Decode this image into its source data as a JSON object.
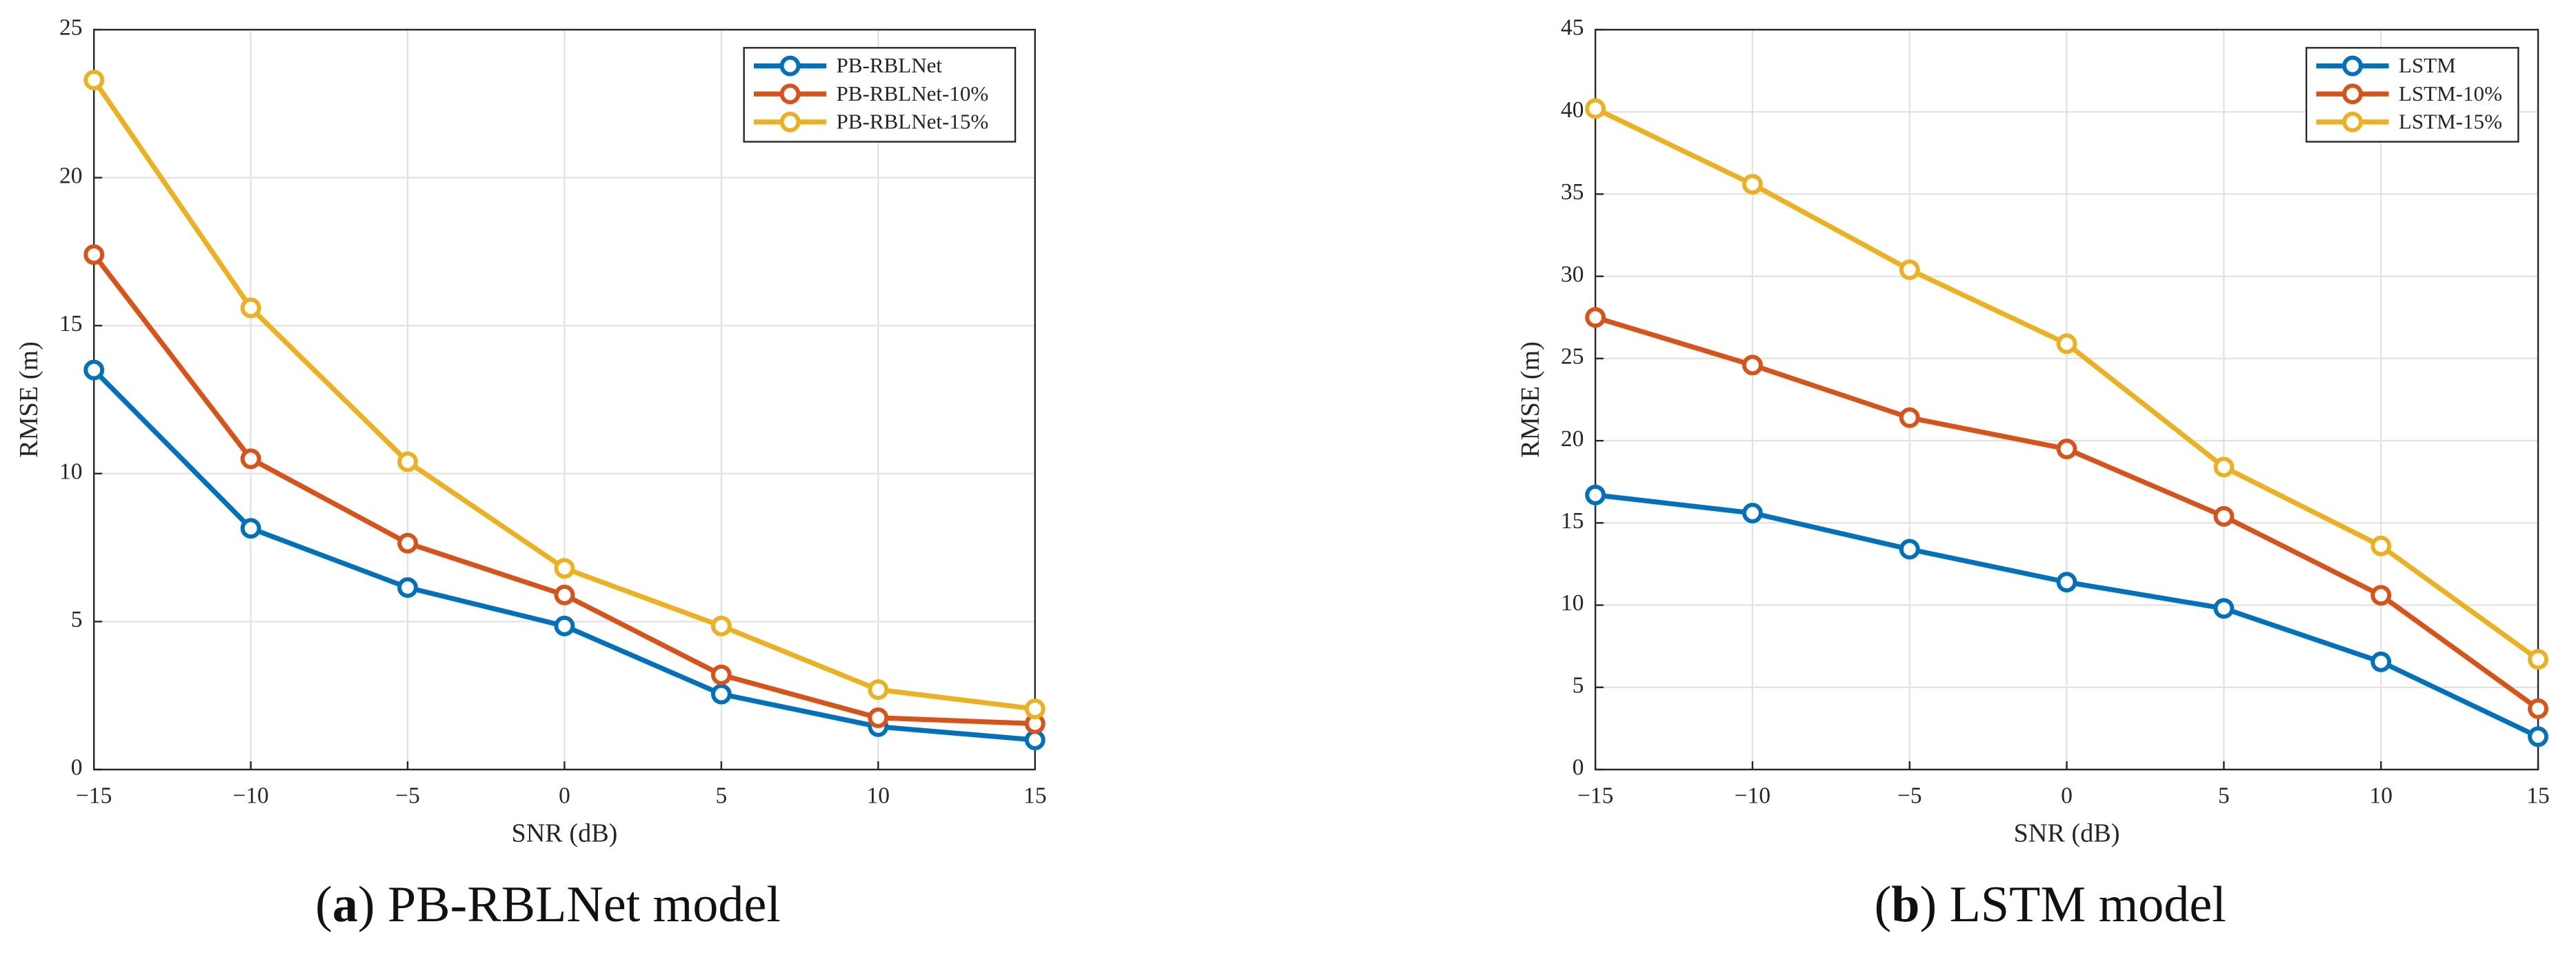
{
  "chart_data": [
    {
      "type": "line",
      "xlabel": "SNR (dB)",
      "ylabel": "RMSE (m)",
      "caption": [
        "(",
        "a",
        ") PB-RBLNet model"
      ],
      "x": [
        -15,
        -10,
        -5,
        0,
        5,
        10,
        15
      ],
      "series": [
        {
          "name": "PB-RBLNet",
          "color": "#0072BD",
          "values": [
            13.5,
            8.15,
            6.15,
            4.85,
            2.55,
            1.45,
            1.0
          ]
        },
        {
          "name": "PB-RBLNet-10%",
          "color": "#D95319",
          "values": [
            17.4,
            10.5,
            7.65,
            5.9,
            3.2,
            1.75,
            1.55
          ]
        },
        {
          "name": "PB-RBLNet-15%",
          "color": "#EDB120",
          "values": [
            23.3,
            15.6,
            10.4,
            6.8,
            4.85,
            2.7,
            2.05
          ]
        }
      ],
      "xlim": [
        -15,
        15
      ],
      "xticks": [
        {
          "value": -15,
          "label": "−15"
        },
        {
          "value": -10,
          "label": "−10"
        },
        {
          "value": -5,
          "label": "−5"
        },
        0,
        5,
        10,
        15
      ],
      "ylim": [
        0,
        25
      ],
      "yticks": [
        0,
        5,
        10,
        15,
        20,
        25
      ],
      "grid": true,
      "legend": "northeast",
      "marker": "circle"
    },
    {
      "type": "line",
      "xlabel": "SNR (dB)",
      "ylabel": "RMSE (m)",
      "caption": [
        "(",
        "b",
        ") LSTM model"
      ],
      "x": [
        -15,
        -10,
        -5,
        0,
        5,
        10,
        15
      ],
      "series": [
        {
          "name": "LSTM",
          "color": "#0072BD",
          "values": [
            16.7,
            15.6,
            13.4,
            11.4,
            9.8,
            6.55,
            2.0
          ]
        },
        {
          "name": "LSTM-10%",
          "color": "#D95319",
          "values": [
            27.5,
            24.6,
            21.4,
            19.5,
            15.4,
            10.6,
            3.7
          ]
        },
        {
          "name": "LSTM-15%",
          "color": "#EDB120",
          "values": [
            40.2,
            35.6,
            30.4,
            25.9,
            18.4,
            13.6,
            6.7
          ]
        }
      ],
      "xlim": [
        -15,
        15
      ],
      "xticks": [
        {
          "value": -15,
          "label": "−15"
        },
        {
          "value": -10,
          "label": "−10"
        },
        {
          "value": -5,
          "label": "−5"
        },
        0,
        5,
        10,
        15
      ],
      "ylim": [
        0,
        45
      ],
      "yticks": [
        0,
        5,
        10,
        15,
        20,
        25,
        30,
        35,
        40,
        45
      ],
      "grid": true,
      "legend": "northeast",
      "marker": "circle"
    }
  ]
}
